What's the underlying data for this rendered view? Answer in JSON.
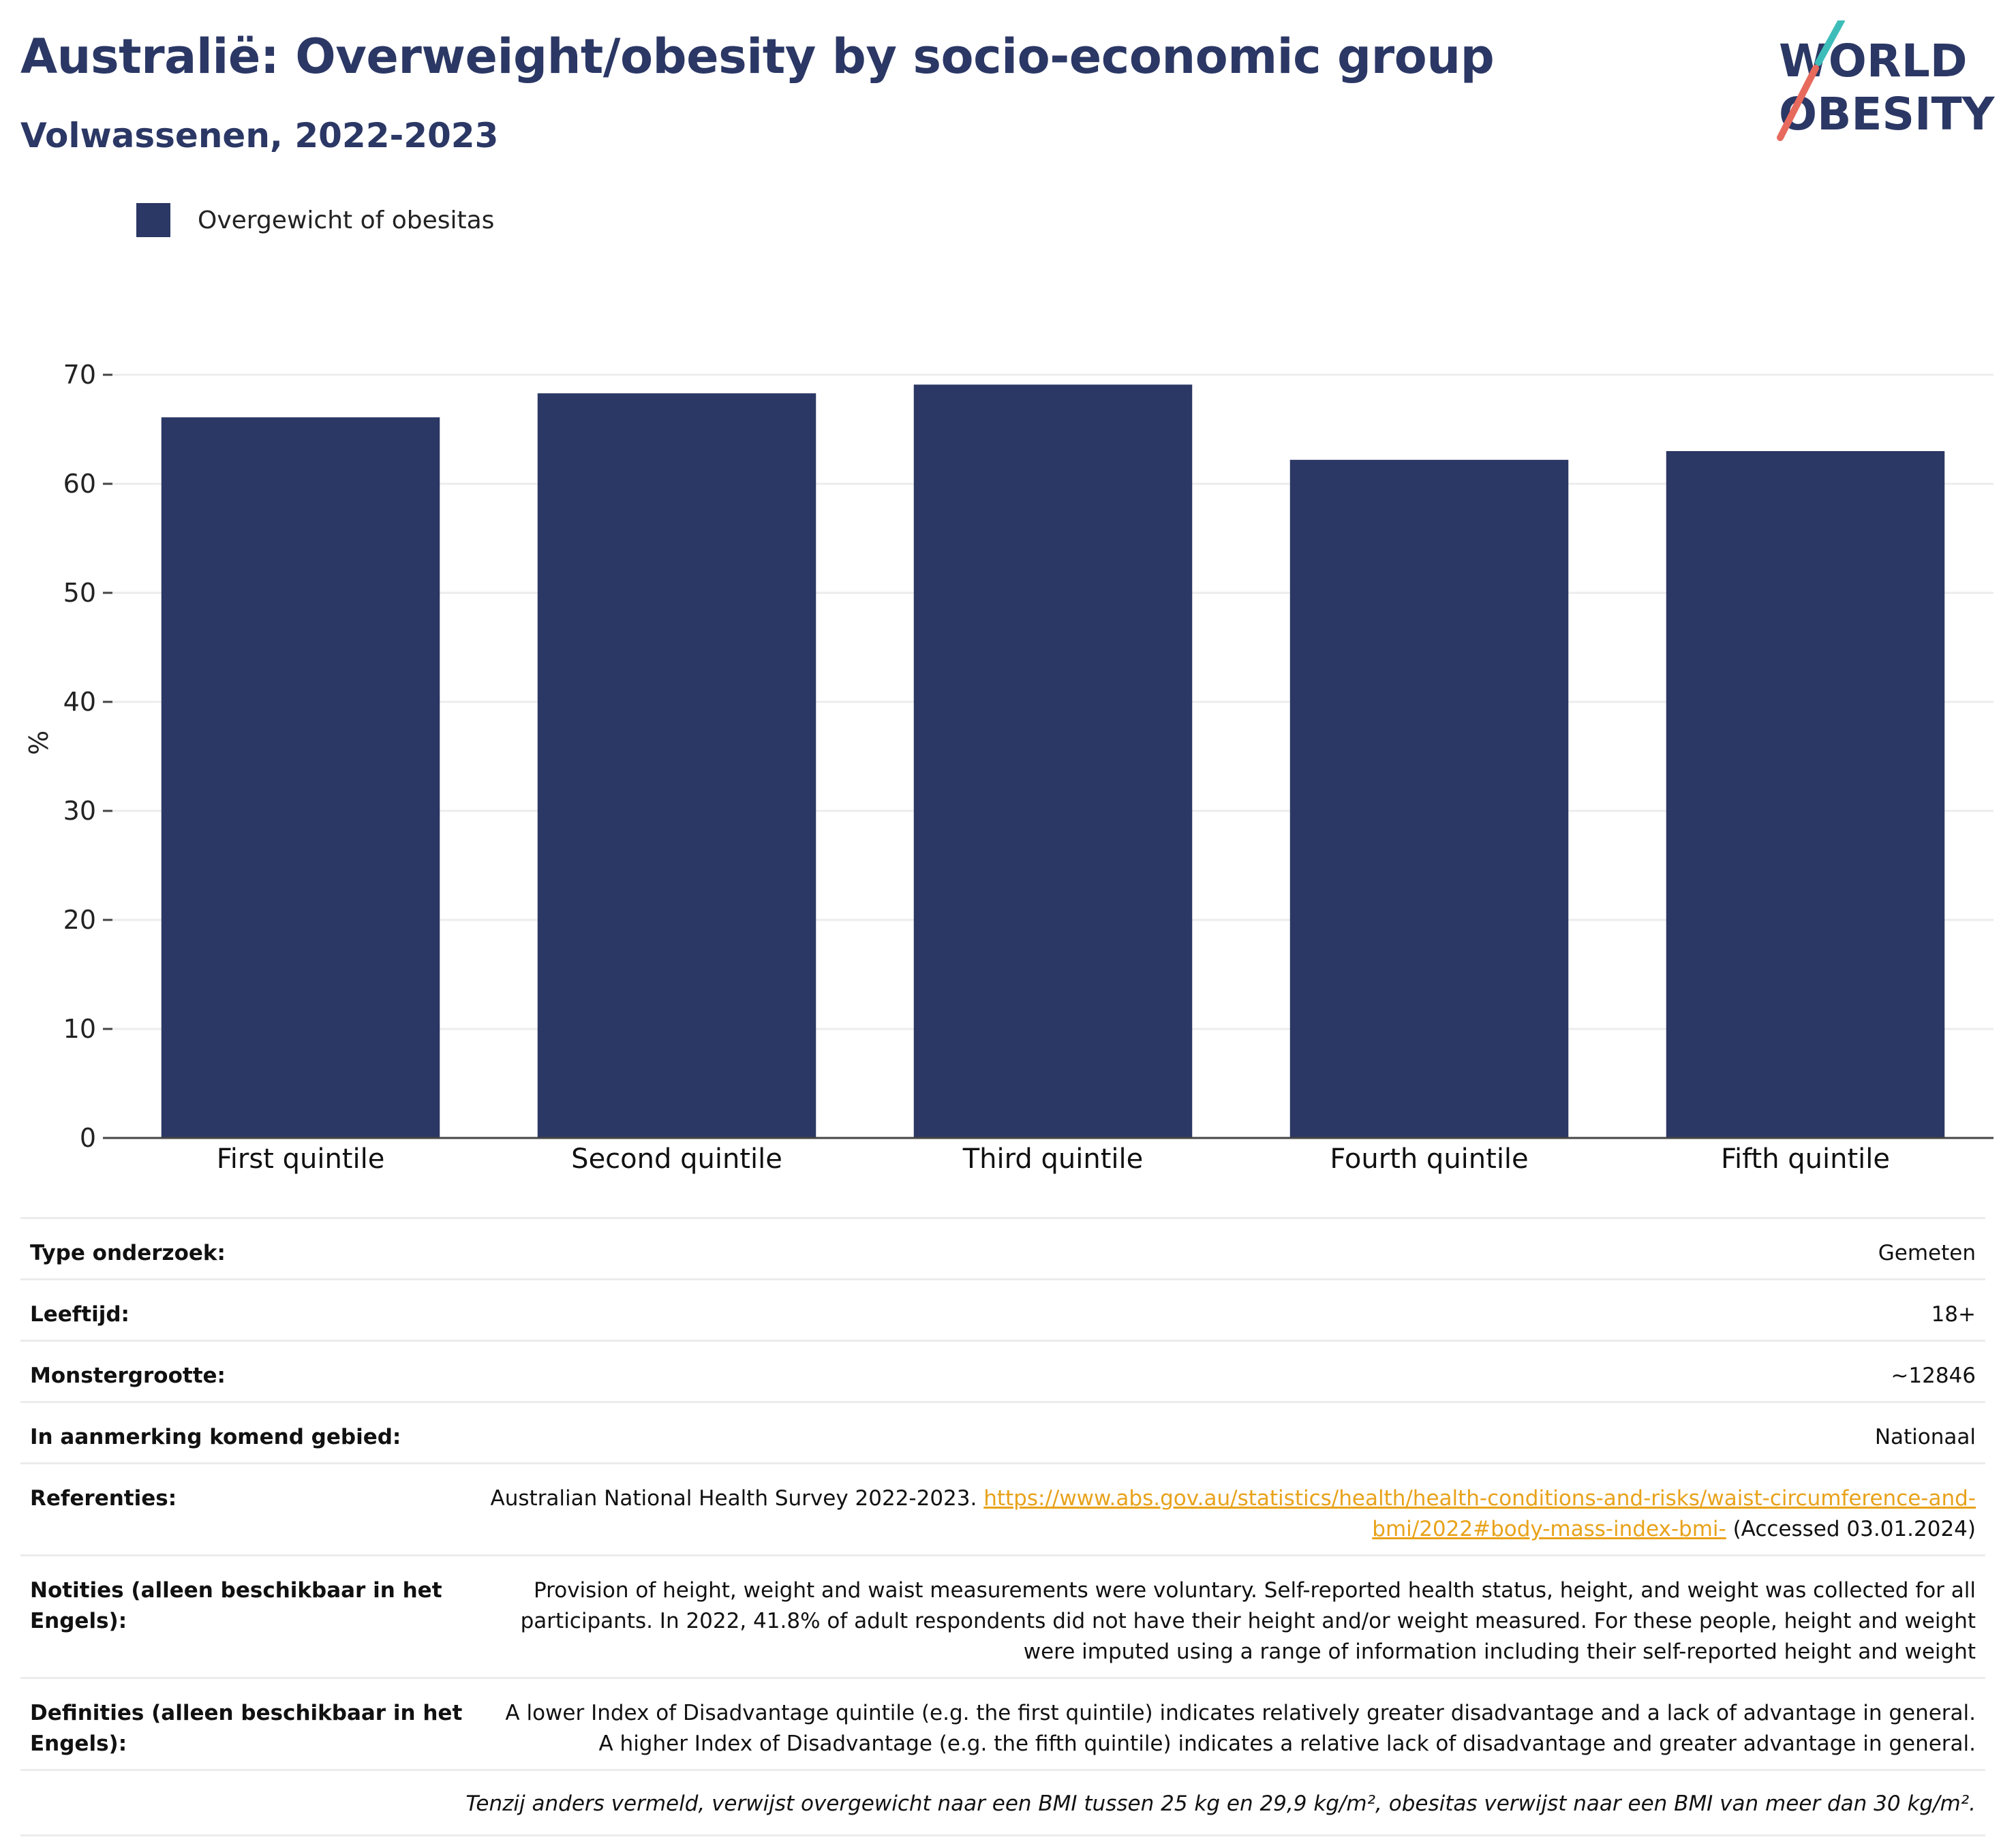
{
  "title": "Australië: Overweight/obesity by socio-economic group",
  "subtitle": "Volwassenen, 2022-2023",
  "logo": {
    "line1": "WORLD",
    "line2": "OBESITY"
  },
  "colors": {
    "bar": "#2b3764",
    "title": "#2b3764",
    "link": "#e8a21a",
    "logo_teal": "#3dbdb9",
    "logo_red": "#e76a5d",
    "grid": "#ececec",
    "axis": "#444444"
  },
  "chart_data": {
    "type": "bar",
    "categories": [
      "First quintile",
      "Second quintile",
      "Third quintile",
      "Fourth quintile",
      "Fifth quintile"
    ],
    "series": [
      {
        "name": "Overgewicht of obesitas",
        "values": [
          66.1,
          68.3,
          69.1,
          62.2,
          63.0
        ]
      }
    ],
    "ylabel": "%",
    "xlabel": "",
    "ylim": [
      0,
      70
    ],
    "yticks": [
      0,
      10,
      20,
      30,
      40,
      50,
      60,
      70
    ],
    "grid": true,
    "legend_position": "top-left"
  },
  "meta": [
    {
      "label": "Type onderzoek:",
      "value": "Gemeten"
    },
    {
      "label": "Leeftijd:",
      "value": "18+"
    },
    {
      "label": "Monstergrootte:",
      "value": "~12846"
    },
    {
      "label": "In aanmerking komend gebied:",
      "value": "Nationaal"
    }
  ],
  "references": {
    "label": "Referenties:",
    "prefix": "Australian National Health Survey 2022-2023. ",
    "link": "https://www.abs.gov.au/statistics/health/health-conditions-and-risks/waist-circumference-and-bmi/2022#body-mass-index-bmi-",
    "suffix": " (Accessed 03.01.2024)"
  },
  "notes": {
    "label": "Notities (alleen beschikbaar in het Engels):",
    "value": "Provision of height, weight and waist measurements were voluntary. Self-reported health status, height, and weight was collected for all participants. In 2022, 41.8% of adult respondents did not have their height and/or weight measured. For these people, height and weight were imputed using a range of information including their self-reported height and weight"
  },
  "definitions": {
    "label": "Definities (alleen beschikbaar in het Engels):",
    "value": "A lower Index of Disadvantage quintile (e.g. the first quintile) indicates relatively greater disadvantage and a lack of advantage in general. A higher Index of Disadvantage (e.g. the fifth quintile) indicates a relative lack of disadvantage and greater advantage in general."
  },
  "footnote": "Tenzij anders vermeld, verwijst overgewicht naar een BMI tussen 25 kg en 29,9 kg/m², obesitas verwijst naar een BMI van meer dan 30 kg/m²."
}
